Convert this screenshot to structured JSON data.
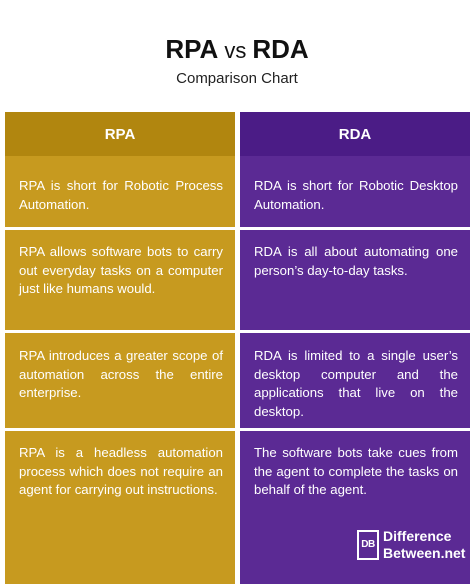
{
  "header": {
    "title_left": "RPA",
    "title_vs": "vs",
    "title_right": "RDA",
    "subtitle": "Comparison Chart"
  },
  "table": {
    "columns": [
      "RPA",
      "RDA"
    ],
    "rows": [
      [
        "RPA is short for Robotic Process Automation.",
        "RDA is short for Robotic Desktop Automation."
      ],
      [
        "RPA allows software bots to carry out everyday tasks on a computer just like humans would.",
        "RDA is all about automating one person’s day-to-day tasks."
      ],
      [
        "RPA introduces a greater scope of automation across the entire enterprise.",
        "RDA is limited to a single user’s desktop computer and the applications that live on the desktop."
      ],
      [
        "RPA is a headless automation process which does not require an agent for carrying out instructions.",
        "The software bots take cues from the agent to complete the tasks on behalf of the agent."
      ]
    ]
  },
  "logo": {
    "mark": "DB",
    "line1": "Difference",
    "line2": "Between.net"
  },
  "colors": {
    "rpa_column": "#c79a1f",
    "rpa_header": "#b1860f",
    "rda_column": "#5b2a94",
    "rda_header": "#4b1c86"
  }
}
